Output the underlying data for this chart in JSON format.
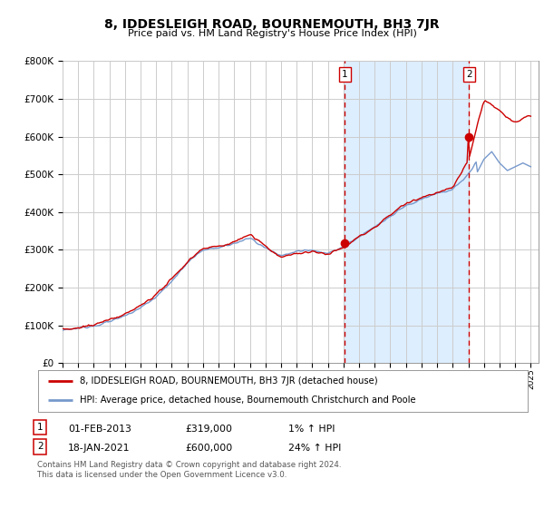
{
  "title": "8, IDDESLEIGH ROAD, BOURNEMOUTH, BH3 7JR",
  "subtitle": "Price paid vs. HM Land Registry's House Price Index (HPI)",
  "ylim": [
    0,
    800000
  ],
  "xlim_start": 1995.0,
  "xlim_end": 2025.5,
  "sale1_x": 2013.08,
  "sale1_y": 319000,
  "sale1_label": "1",
  "sale2_x": 2021.04,
  "sale2_y": 600000,
  "sale2_label": "2",
  "annotation1": [
    "1",
    "01-FEB-2013",
    "£319,000",
    "1% ↑ HPI"
  ],
  "annotation2": [
    "2",
    "18-JAN-2021",
    "£600,000",
    "24% ↑ HPI"
  ],
  "legend_line1": "8, IDDESLEIGH ROAD, BOURNEMOUTH, BH3 7JR (detached house)",
  "legend_line2": "HPI: Average price, detached house, Bournemouth Christchurch and Poole",
  "footer": "Contains HM Land Registry data © Crown copyright and database right 2024.\nThis data is licensed under the Open Government Licence v3.0.",
  "line_color_red": "#cc0000",
  "line_color_blue": "#7799cc",
  "shade_color": "#ddeeff",
  "bg_color": "#ffffff",
  "grid_color": "#cccccc"
}
